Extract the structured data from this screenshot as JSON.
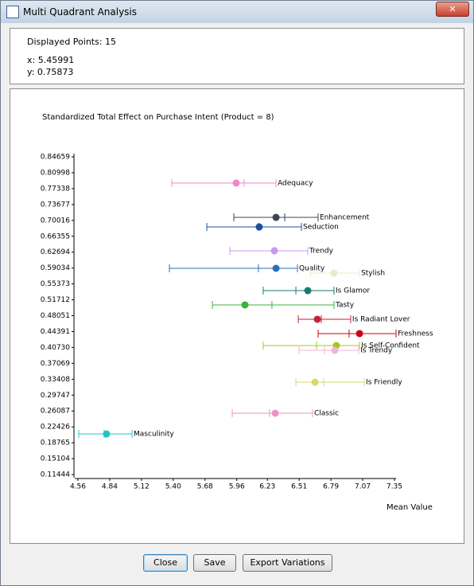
{
  "window": {
    "title": "Multi Quadrant Analysis"
  },
  "info": {
    "displayed": "Displayed Points: 15",
    "x": "x: 5.45991",
    "y": "y: 0.75873"
  },
  "chart_data": {
    "type": "interval-scatter",
    "title": "Standardized Total Effect on Purchase Intent (Product = 8)",
    "x_label": "Mean Value",
    "xlim": [
      4.56,
      7.35
    ],
    "xticks": [
      4.56,
      4.84,
      5.12,
      {
        "value": 5.4,
        "label": "5.40"
      },
      5.68,
      5.96,
      6.23,
      6.51,
      6.79,
      7.07,
      7.35
    ],
    "ylim": [
      0.11444,
      0.84659
    ],
    "yticks": [
      0.84659,
      0.80998,
      0.77338,
      0.73677,
      0.70016,
      0.66355,
      0.62694,
      0.59034,
      0.55373,
      0.51712,
      0.48051,
      0.44391,
      {
        "value": 0.4073,
        "label": "0.40730"
      },
      0.37069,
      0.33408,
      0.29747,
      0.26087,
      0.22426,
      0.18765,
      0.15104,
      0.11444
    ],
    "series": [
      {
        "name": "Adequacy",
        "color": "#f088c8",
        "x": 5.955,
        "y": 0.7862,
        "low": 5.387,
        "high": 6.306,
        "ref": 6.025
      },
      {
        "name": "Enhancement",
        "color": "#3c4656",
        "x": 6.306,
        "y": 0.7071,
        "low": 5.934,
        "high": 6.677,
        "ref": 6.383
      },
      {
        "name": "Seduction",
        "color": "#1f4f9e",
        "x": 6.158,
        "y": 0.6851,
        "low": 5.696,
        "high": 6.53,
        "ref": 6.15
      },
      {
        "name": "Trendy",
        "color": "#c898f0",
        "x": 6.292,
        "y": 0.6301,
        "low": 5.899,
        "high": 6.586,
        "ref": 6.29
      },
      {
        "name": "Quality",
        "color": "#2a70b8",
        "x": 6.306,
        "y": 0.5897,
        "low": 5.366,
        "high": 6.495,
        "ref": 6.151
      },
      {
        "name": "Stylish",
        "color": "#ecebc8",
        "x": 6.817,
        "y": 0.5787,
        "low": 6.607,
        "high": 7.042,
        "ref": 6.817
      },
      {
        "name": "Is Glamor",
        "color": "#1a7a6e",
        "x": 6.586,
        "y": 0.5383,
        "low": 6.193,
        "high": 6.817,
        "ref": 6.481
      },
      {
        "name": "Tasty",
        "color": "#3cb33c",
        "x": 6.032,
        "y": 0.5053,
        "low": 5.745,
        "high": 6.817,
        "ref": 6.27
      },
      {
        "name": "Is Radiant Lover",
        "color": "#c8203c",
        "x": 6.67,
        "y": 0.4723,
        "low": 6.502,
        "high": 6.964,
        "ref": 6.705
      },
      {
        "name": "Freshness",
        "color": "#cc0010",
        "x": 7.042,
        "y": 0.4393,
        "low": 6.677,
        "high": 7.364,
        "ref": 6.95
      },
      {
        "name": "Is Self-Confident",
        "color": "#a8c820",
        "x": 6.838,
        "y": 0.4117,
        "low": 6.193,
        "high": 7.042,
        "ref": 6.663
      },
      {
        "name": "Is Trendy",
        "color": "#f2b4da",
        "x": 6.824,
        "y": 0.4007,
        "low": 6.509,
        "high": 7.035,
        "ref": 6.733
      },
      {
        "name": "Is Friendly",
        "color": "#d8d870",
        "x": 6.649,
        "y": 0.3273,
        "low": 6.481,
        "high": 7.084,
        "ref": 6.726
      },
      {
        "name": "Classic",
        "color": "#f090c8",
        "x": 6.299,
        "y": 0.2558,
        "low": 5.92,
        "high": 6.628,
        "ref": 6.249
      },
      {
        "name": "Masculinity",
        "color": "#20c4c4",
        "x": 4.812,
        "y": 0.208,
        "low": 4.567,
        "high": 5.037,
        "ref": 4.791
      }
    ]
  },
  "buttons": [
    "Close",
    "Save",
    "Export Variations"
  ]
}
